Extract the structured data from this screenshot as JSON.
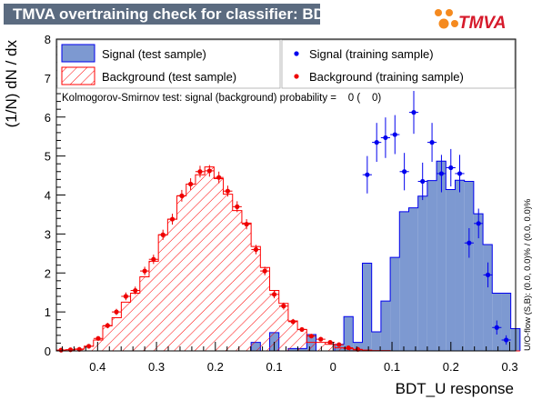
{
  "chart_data": {
    "type": "bar",
    "title": "TMVA overtraining check for classifier: BDT_U",
    "xlabel": "BDT_U response",
    "ylabel": "(1/N) dN / dx",
    "xlim": [
      -0.47,
      0.31
    ],
    "ylim": [
      0,
      8
    ],
    "x_ticks": [
      -0.4,
      -0.3,
      -0.2,
      -0.1,
      0,
      0.1,
      0.2,
      0.3
    ],
    "x_tick_labels": [
      "0.4",
      "0.3",
      "0.2",
      "0.1",
      "0",
      "0.1",
      "0.2",
      "0.3"
    ],
    "y_ticks": [
      0,
      1,
      2,
      3,
      4,
      5,
      6,
      7,
      8
    ],
    "y_tick_labels": [
      "0",
      "1",
      "2",
      "3",
      "4",
      "5",
      "6",
      "7",
      "8"
    ],
    "bins": {
      "start": -0.47,
      "width": 0.01575,
      "count": 50
    },
    "series": [
      {
        "name": "Signal (test sample)",
        "kind": "filled-histogram",
        "color": "#7d99d1",
        "edge_color": "#0000ee",
        "values": [
          0,
          0,
          0,
          0,
          0,
          0,
          0,
          0,
          0,
          0,
          0,
          0,
          0,
          0,
          0,
          0,
          0,
          0,
          0,
          0,
          0,
          0.22,
          0,
          0.47,
          0,
          0.06,
          0.06,
          0.42,
          0,
          0,
          0.17,
          0.88,
          0.22,
          2.25,
          0.49,
          1.28,
          2.4,
          3.57,
          3.67,
          3.97,
          4.37,
          4.87,
          4.14,
          4.38,
          4.35,
          3.52,
          2.73,
          1.48,
          1.48,
          0.57
        ]
      },
      {
        "name": "Background (test sample)",
        "kind": "hatched-histogram",
        "color": "#ff0000",
        "values": [
          0.02,
          0.03,
          0.05,
          0.12,
          0.28,
          0.64,
          0.85,
          1.25,
          1.48,
          1.9,
          2.3,
          2.98,
          3.38,
          3.98,
          4.28,
          4.52,
          4.72,
          4.42,
          4.02,
          3.6,
          3.28,
          2.68,
          2.14,
          1.55,
          1.22,
          0.77,
          0.55,
          0.22,
          0.22,
          0.17,
          0.08,
          0.06,
          0.03,
          0.02,
          0.01,
          0.01,
          0,
          0,
          0,
          0,
          0,
          0,
          0,
          0,
          0,
          0,
          0,
          0,
          0,
          0
        ]
      },
      {
        "name": "Signal (training sample)",
        "kind": "points-with-errors",
        "color": "#0000ee",
        "points": [
          {
            "x": 0.058,
            "y": 4.52,
            "err": 0.48
          },
          {
            "x": 0.074,
            "y": 5.35,
            "err": 0.5
          },
          {
            "x": 0.089,
            "y": 5.47,
            "err": 0.52
          },
          {
            "x": 0.105,
            "y": 5.55,
            "err": 0.5
          },
          {
            "x": 0.121,
            "y": 4.6,
            "err": 0.48
          },
          {
            "x": 0.137,
            "y": 6.12,
            "err": 0.55
          },
          {
            "x": 0.152,
            "y": 4.35,
            "err": 0.48
          },
          {
            "x": 0.168,
            "y": 5.35,
            "err": 0.5
          },
          {
            "x": 0.184,
            "y": 4.55,
            "err": 0.48
          },
          {
            "x": 0.2,
            "y": 4.7,
            "err": 0.48
          },
          {
            "x": 0.215,
            "y": 4.55,
            "err": 0.48
          },
          {
            "x": 0.231,
            "y": 2.77,
            "err": 0.38
          },
          {
            "x": 0.247,
            "y": 3.27,
            "err": 0.38
          },
          {
            "x": 0.263,
            "y": 1.95,
            "err": 0.32
          },
          {
            "x": 0.278,
            "y": 0.6,
            "err": 0.18
          },
          {
            "x": 0.294,
            "y": 0.28,
            "err": 0.12
          }
        ]
      },
      {
        "name": "Background (training sample)",
        "kind": "points-with-errors",
        "color": "#ee0000",
        "points": [
          {
            "x": -0.462,
            "y": 0.02,
            "err": 0.02
          },
          {
            "x": -0.446,
            "y": 0.03,
            "err": 0.02
          },
          {
            "x": -0.431,
            "y": 0.04,
            "err": 0.02
          },
          {
            "x": -0.415,
            "y": 0.12,
            "err": 0.03
          },
          {
            "x": -0.399,
            "y": 0.32,
            "err": 0.05
          },
          {
            "x": -0.383,
            "y": 0.65,
            "err": 0.07
          },
          {
            "x": -0.368,
            "y": 1.0,
            "err": 0.08
          },
          {
            "x": -0.352,
            "y": 1.4,
            "err": 0.1
          },
          {
            "x": -0.336,
            "y": 1.55,
            "err": 0.1
          },
          {
            "x": -0.32,
            "y": 2.05,
            "err": 0.11
          },
          {
            "x": -0.305,
            "y": 2.35,
            "err": 0.12
          },
          {
            "x": -0.289,
            "y": 2.98,
            "err": 0.13
          },
          {
            "x": -0.273,
            "y": 3.38,
            "err": 0.14
          },
          {
            "x": -0.257,
            "y": 3.98,
            "err": 0.15
          },
          {
            "x": -0.242,
            "y": 4.28,
            "err": 0.15
          },
          {
            "x": -0.226,
            "y": 4.6,
            "err": 0.15
          },
          {
            "x": -0.21,
            "y": 4.62,
            "err": 0.15
          },
          {
            "x": -0.194,
            "y": 4.45,
            "err": 0.15
          },
          {
            "x": -0.179,
            "y": 4.1,
            "err": 0.14
          },
          {
            "x": -0.163,
            "y": 3.7,
            "err": 0.14
          },
          {
            "x": -0.147,
            "y": 3.25,
            "err": 0.13
          },
          {
            "x": -0.131,
            "y": 2.6,
            "err": 0.12
          },
          {
            "x": -0.116,
            "y": 2.05,
            "err": 0.11
          },
          {
            "x": -0.1,
            "y": 1.45,
            "err": 0.1
          },
          {
            "x": -0.084,
            "y": 1.15,
            "err": 0.09
          },
          {
            "x": -0.068,
            "y": 0.75,
            "err": 0.07
          },
          {
            "x": -0.053,
            "y": 0.55,
            "err": 0.06
          },
          {
            "x": -0.037,
            "y": 0.38,
            "err": 0.05
          },
          {
            "x": -0.021,
            "y": 0.3,
            "err": 0.05
          },
          {
            "x": -0.005,
            "y": 0.22,
            "err": 0.04
          },
          {
            "x": 0.01,
            "y": 0.16,
            "err": 0.04
          },
          {
            "x": 0.026,
            "y": 0.08,
            "err": 0.03
          },
          {
            "x": 0.042,
            "y": 0.04,
            "err": 0.02
          }
        ]
      }
    ],
    "legend": [
      {
        "label": "Signal (test sample)",
        "style": "filled-box",
        "color": "#7d99d1"
      },
      {
        "label": "Signal (training sample)",
        "style": "marker",
        "color": "#0000ee"
      },
      {
        "label": "Background (test sample)",
        "style": "hatched-box",
        "color": "#ff0000"
      },
      {
        "label": "Background (training sample)",
        "style": "marker",
        "color": "#ee0000"
      }
    ],
    "annotations": {
      "ks_test": "Kolmogorov-Smirnov test: signal (background) probability =    0 (    0)",
      "side_label": "U/O-flow (S,B): (0.0, 0.0)% / (0.0, 0.0)%"
    }
  },
  "logo": {
    "text": "TMVA",
    "colors": {
      "text": "#d61a2b",
      "dots": "#f58a1f"
    }
  },
  "colors": {
    "title_bar_bg": "#5b6b80",
    "title_bar_text": "#ffffff",
    "axes": "#000000"
  }
}
